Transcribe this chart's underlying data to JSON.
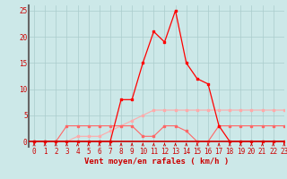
{
  "x": [
    0,
    1,
    2,
    3,
    4,
    5,
    6,
    7,
    8,
    9,
    10,
    11,
    12,
    13,
    14,
    15,
    16,
    17,
    18,
    19,
    20,
    21,
    22,
    23
  ],
  "line_rafales_y": [
    0,
    0,
    0,
    0,
    0,
    0,
    0,
    0,
    8,
    8,
    15,
    21,
    19,
    25,
    15,
    12,
    11,
    3,
    0,
    0,
    0,
    0,
    0,
    0
  ],
  "line_moyen_y": [
    0,
    0,
    0,
    3,
    3,
    3,
    3,
    3,
    3,
    3,
    1,
    1,
    3,
    3,
    2,
    0,
    0,
    3,
    3,
    3,
    3,
    3,
    3,
    3
  ],
  "line_freq_y": [
    0,
    0,
    0,
    0,
    1,
    1,
    1,
    2,
    3,
    4,
    5,
    6,
    6,
    6,
    6,
    6,
    6,
    6,
    6,
    6,
    6,
    6,
    6,
    6
  ],
  "bg_color": "#cce8e8",
  "grid_color": "#aacccc",
  "line_rafales_color": "#ff0000",
  "line_moyen_color": "#ff6666",
  "line_freq_color": "#ffaaaa",
  "spine_color": "#666666",
  "tick_label_color": "#cc0000",
  "xlabel": "Vent moyen/en rafales ( km/h )",
  "ylim": [
    -1,
    26
  ],
  "xlim": [
    -0.5,
    23
  ],
  "yticks": [
    0,
    5,
    10,
    15,
    20,
    25
  ],
  "xticks": [
    0,
    1,
    2,
    3,
    4,
    5,
    6,
    7,
    8,
    9,
    10,
    11,
    12,
    13,
    14,
    15,
    16,
    17,
    18,
    19,
    20,
    21,
    22,
    23
  ],
  "xlabel_fontsize": 6.5,
  "tick_fontsize": 5.5
}
